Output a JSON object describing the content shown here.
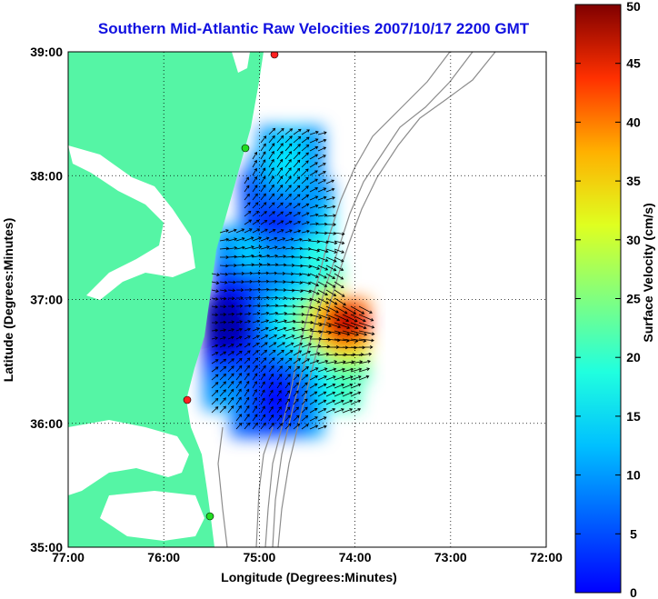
{
  "title": "Southern Mid-Atlantic Raw Velocities 2007/10/17 2200 GMT",
  "x_axis": {
    "label": "Longitude (Degrees:Minutes)",
    "ticks": [
      "77:00",
      "76:00",
      "75:00",
      "74:00",
      "73:00",
      "72:00"
    ]
  },
  "y_axis": {
    "label": "Latitude (Degrees:Minutes)",
    "ticks": [
      "39:00",
      "38:00",
      "37:00",
      "36:00",
      "35:00"
    ]
  },
  "colorbar": {
    "label": "Surface Velocity (cm/s)",
    "ticks": [
      "50",
      "45",
      "40",
      "35",
      "30",
      "25",
      "20",
      "15",
      "10",
      "5",
      "0"
    ],
    "min": 0,
    "max": 50
  },
  "colors": {
    "land": "#55f5a5",
    "title": "#1010e0",
    "bathymetry": "#8c8c8c",
    "station_red": "#ff2020",
    "station_green": "#22dd22"
  },
  "grid": "dotted"
}
